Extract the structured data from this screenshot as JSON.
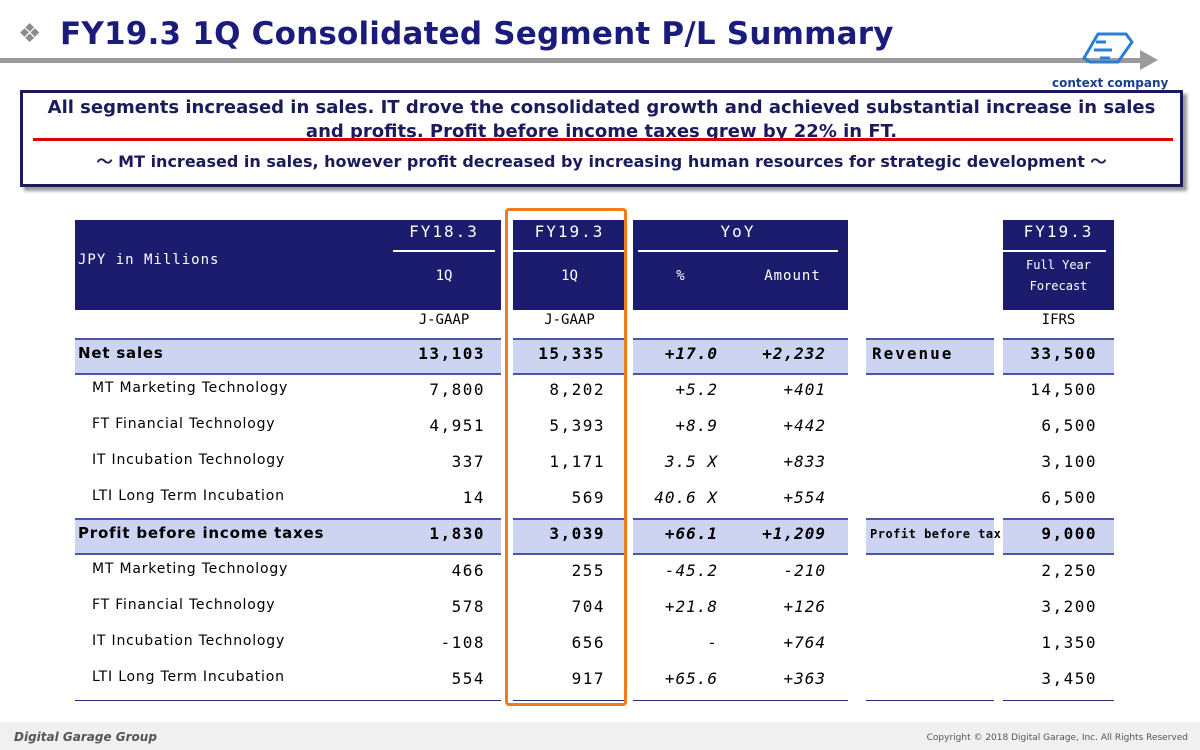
{
  "title": {
    "bullet": "❖",
    "text": "FY19.3 1Q Consolidated Segment P/L Summary"
  },
  "brand": {
    "logo_caption": "context company",
    "footer_logo": "Digital Garage Group",
    "copyright": "Copyright © 2018 Digital Garage, Inc. All Rights Reserved"
  },
  "summary": {
    "main": "All segments increased in sales. IT drove the consolidated growth and achieved substantial increase in sales and profits. Profit before income taxes grew by 22% in FT.",
    "sub": "～ MT increased in sales, however profit decreased by increasing human resources for strategic development ～"
  },
  "table": {
    "unit_label": "JPY in Millions",
    "col_fy18": "FY18.3",
    "col_fy19": "FY19.3",
    "col_yoy": "YoY",
    "col_forecast": "FY19.3",
    "sub_q_fy18": "1Q",
    "sub_q_fy19": "1Q",
    "sub_pct": "%",
    "sub_amount": "Amount",
    "sub_forecast_1": "Full Year",
    "sub_forecast_2": "Forecast",
    "gaap_fy18": "J-GAAP",
    "gaap_fy19": "J-GAAP",
    "gaap_forecast": "IFRS",
    "rows": [
      {
        "label": "Net sales",
        "fy18": "13,103",
        "fy19": "15,335",
        "pct": "+17.0",
        "amount": "+2,232",
        "ifrs_label": "Revenue",
        "forecast": "33,500"
      },
      {
        "label": "MT  Marketing Technology",
        "fy18": "7,800",
        "fy19": "8,202",
        "pct": "+5.2",
        "amount": "+401",
        "ifrs_label": "",
        "forecast": "14,500"
      },
      {
        "label": "FT  Financial Technology",
        "fy18": "4,951",
        "fy19": "5,393",
        "pct": "+8.9",
        "amount": "+442",
        "ifrs_label": "",
        "forecast": "6,500"
      },
      {
        "label": "IT  Incubation Technology",
        "fy18": "337",
        "fy19": "1,171",
        "pct": "3.5 X",
        "amount": "+833",
        "ifrs_label": "",
        "forecast": "3,100"
      },
      {
        "label": "LTI Long Term Incubation",
        "fy18": "14",
        "fy19": "569",
        "pct": "40.6 X",
        "amount": "+554",
        "ifrs_label": "",
        "forecast": "6,500"
      },
      {
        "label": "Profit before income taxes",
        "fy18": "1,830",
        "fy19": "3,039",
        "pct": "+66.1",
        "amount": "+1,209",
        "ifrs_label": "Profit before tax",
        "forecast": "9,000"
      },
      {
        "label": "MT  Marketing Technology",
        "fy18": "466",
        "fy19": "255",
        "pct": "-45.2",
        "amount": "-210",
        "ifrs_label": "",
        "forecast": "2,250"
      },
      {
        "label": "FT  Financial Technology",
        "fy18": "578",
        "fy19": "704",
        "pct": "+21.8",
        "amount": "+126",
        "ifrs_label": "",
        "forecast": "3,200"
      },
      {
        "label": "IT  Incubation Technology",
        "fy18": "-108",
        "fy19": "656",
        "pct": "-",
        "amount": "+764",
        "ifrs_label": "",
        "forecast": "1,350"
      },
      {
        "label": "LTI Long Term Incubation",
        "fy18": "554",
        "fy19": "917",
        "pct": "+65.6",
        "amount": "+363",
        "ifrs_label": "",
        "forecast": "3,450"
      }
    ]
  },
  "colors": {
    "title": "#1b1b7c",
    "header_bg": "#1c1c6e",
    "band_bg": "#ccd4f2",
    "highlight": "#f07a1c",
    "summary_underline": "#e00000"
  }
}
